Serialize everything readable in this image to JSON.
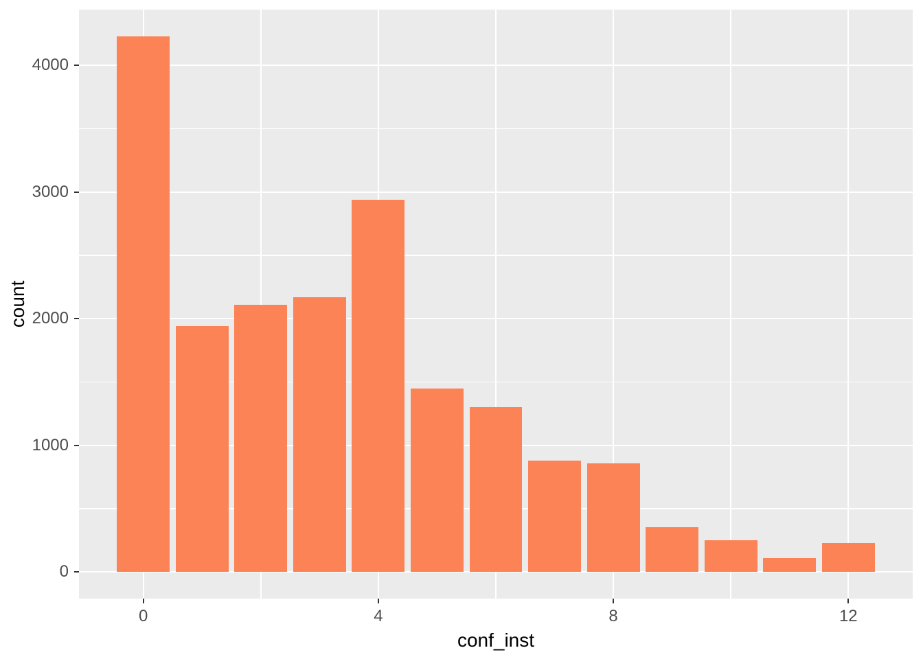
{
  "figure": {
    "kind": "ggplot-histogram",
    "background": "#FFFFFF"
  },
  "chart_data": {
    "type": "bar",
    "title": "",
    "xlabel": "conf_inst",
    "ylabel": "count",
    "x": [
      0,
      1,
      2,
      3,
      4,
      5,
      6,
      7,
      8,
      9,
      10,
      11,
      12
    ],
    "values": [
      4230,
      1940,
      2110,
      2170,
      2940,
      1450,
      1300,
      880,
      855,
      350,
      250,
      110,
      230
    ],
    "bar_width": 0.9,
    "xlim": [
      -1.095,
      13.095
    ],
    "ylim": [
      -211.5,
      4441.5
    ],
    "x_ticks": [
      0,
      4,
      8,
      12
    ],
    "x_tick_labels": [
      "0",
      "4",
      "8",
      "12"
    ],
    "y_ticks": [
      0,
      1000,
      2000,
      3000,
      4000
    ],
    "y_tick_labels": [
      "0",
      "1000",
      "2000",
      "3000",
      "4000"
    ],
    "x_minor_ticks": [
      2,
      6,
      10
    ],
    "y_minor_ticks": [
      500,
      1500,
      2500,
      3500
    ],
    "grid": true,
    "legend": false,
    "colors": {
      "bar_fill": "#FC8355",
      "panel_background": "#EBEBEB",
      "grid_major": "#FFFFFF",
      "grid_minor": "#FFFFFF",
      "tick_label": "#4D4D4D",
      "axis_title": "#000000",
      "tick_mark": "#333333",
      "figure_background": "#FFFFFF"
    }
  }
}
